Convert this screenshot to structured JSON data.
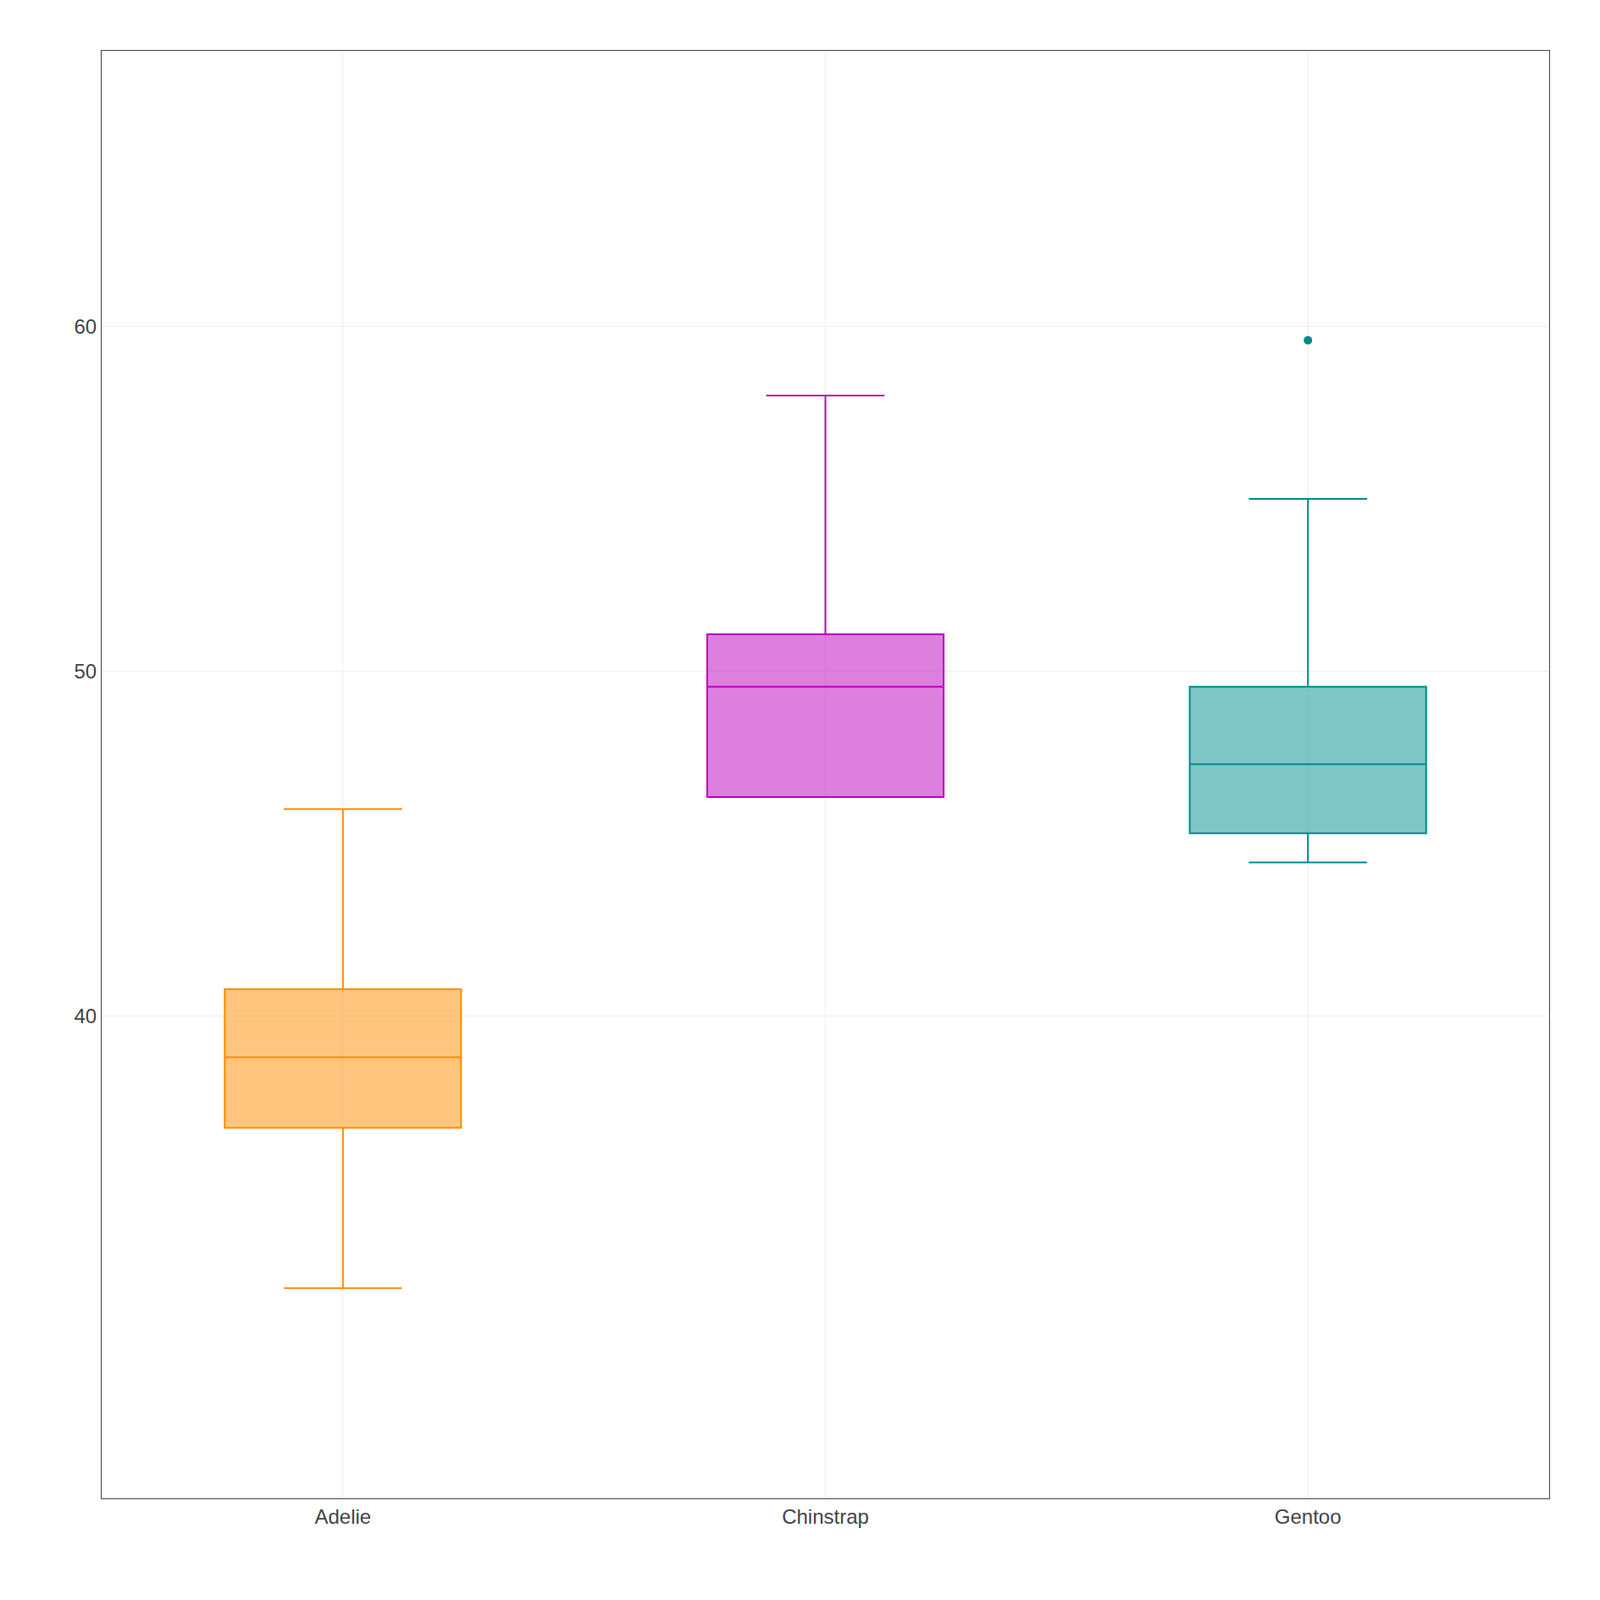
{
  "chart_data": {
    "type": "box",
    "categories": [
      "Adelie",
      "Chinstrap",
      "Gentoo"
    ],
    "colors": [
      "#FF8C00",
      "#BB00BB",
      "#008B8B"
    ],
    "boxes": [
      {
        "whisker_low": 32.1,
        "q1": 36.75,
        "median": 38.8,
        "q3": 40.775,
        "whisker_high": 46.0,
        "fliers": []
      },
      {
        "whisker_low": 46.35,
        "q1": 46.35,
        "median": 49.55,
        "q3": 51.075,
        "whisker_high": 58.0,
        "fliers": []
      },
      {
        "whisker_low": 44.45,
        "q1": 45.3,
        "median": 47.3,
        "q3": 49.55,
        "whisker_high": 55.0,
        "fliers": [
          59.6
        ]
      }
    ],
    "ylim": [
      26.0,
      68.0
    ],
    "yticks": [
      40,
      50,
      60
    ],
    "grid": true
  }
}
